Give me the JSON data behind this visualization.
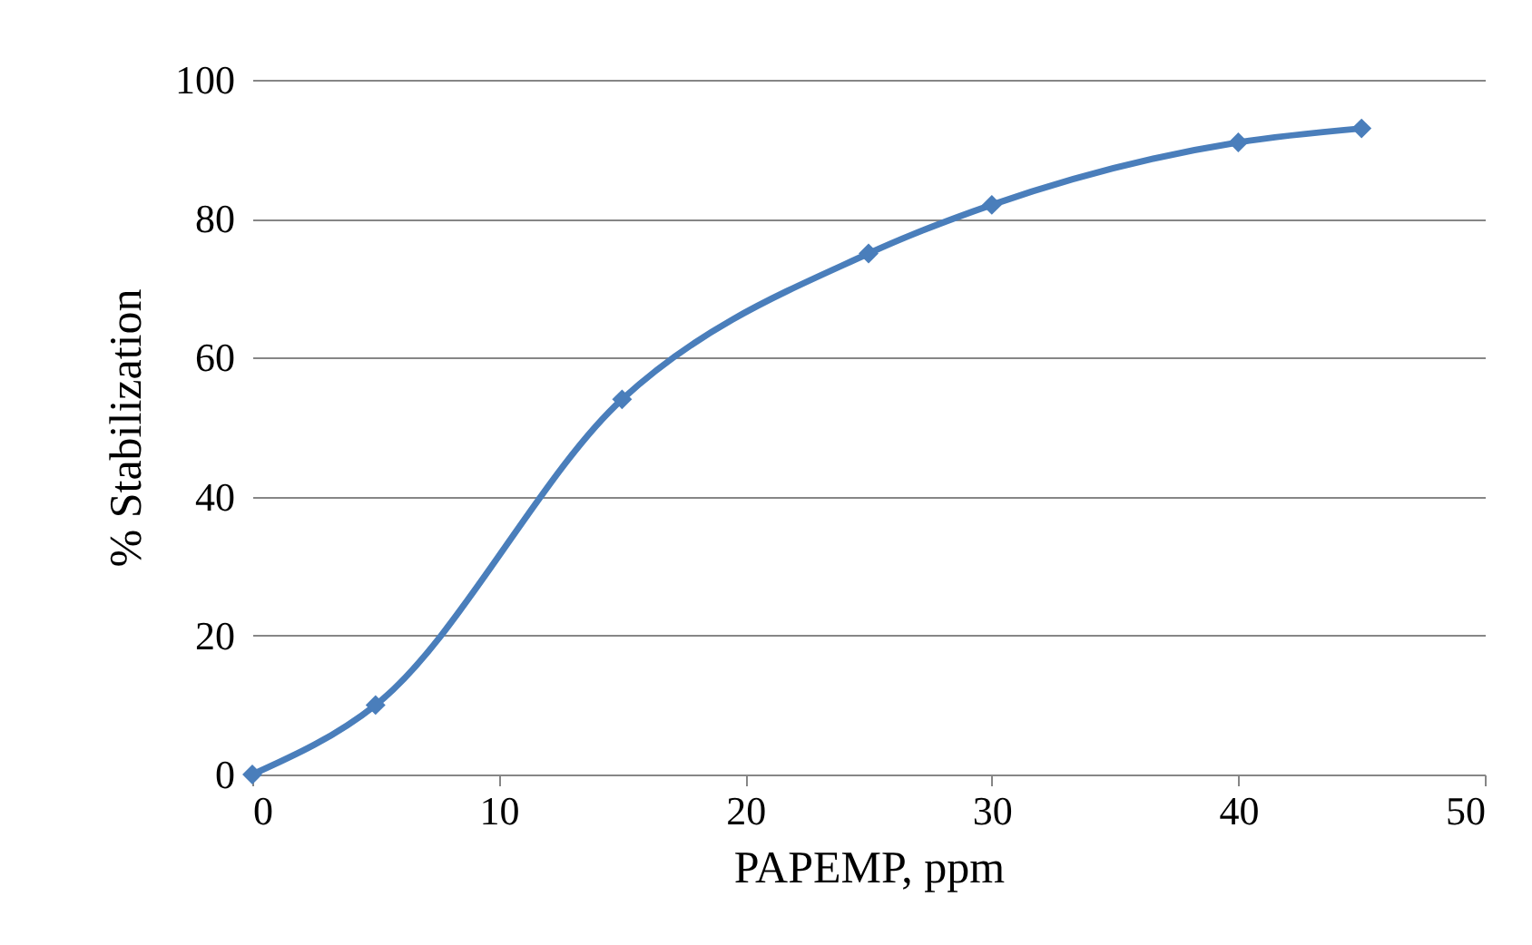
{
  "chart_data": {
    "type": "line",
    "xlabel": "PAPEMP, ppm",
    "ylabel": "% Stabilization",
    "x": [
      0,
      5,
      15,
      25,
      30,
      40,
      45
    ],
    "series": [
      {
        "color": "#4a7ebb",
        "values": [
          0,
          10,
          54,
          75,
          82,
          91,
          93
        ]
      }
    ],
    "xlim": [
      0,
      50
    ],
    "xticks": [
      0,
      10,
      20,
      30,
      40,
      50
    ],
    "ylim": [
      0,
      100
    ],
    "yticks": [
      0,
      20,
      40,
      60,
      80,
      100
    ],
    "grid": "y",
    "marker": "diamond",
    "line_style": "solid"
  }
}
